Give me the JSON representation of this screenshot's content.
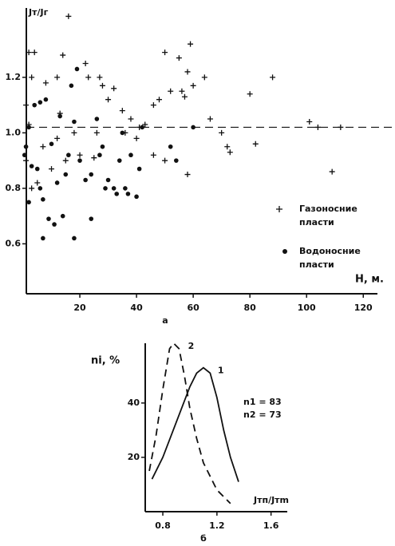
{
  "chart_data": [
    {
      "type": "scatter",
      "caption": "а",
      "ylabel": "Jт/Jг",
      "xlabel": "H, м.",
      "xlim": [
        0,
        125
      ],
      "ylim": [
        0.42,
        1.45
      ],
      "xticks": [
        20,
        40,
        60,
        80,
        100,
        120
      ],
      "yticks": [
        0.6,
        0.8,
        {
          "value": 1,
          "label": "1.0"
        },
        1.2
      ],
      "hline": 1.02,
      "series": [
        {
          "name": "Газоносние пласти",
          "marker": "plus",
          "color": "#111",
          "x": [
            2,
            4,
            3,
            8,
            12,
            13,
            16,
            14,
            22,
            23,
            27,
            28,
            32,
            30,
            35,
            38,
            41,
            43,
            46,
            48,
            50,
            52,
            55,
            56,
            57,
            58,
            59,
            60,
            64,
            66,
            70,
            72,
            73,
            80,
            82,
            88,
            101,
            104,
            112,
            109,
            58,
            50,
            46,
            25,
            20,
            15,
            10,
            5,
            3,
            7,
            12,
            18,
            26,
            36,
            40,
            1,
            2,
            1
          ],
          "values": [
            1.29,
            1.29,
            1.2,
            1.18,
            1.2,
            1.07,
            1.42,
            1.28,
            1.25,
            1.2,
            1.2,
            1.17,
            1.16,
            1.12,
            1.08,
            1.05,
            1.02,
            1.03,
            1.1,
            1.12,
            1.29,
            1.15,
            1.27,
            1.15,
            1.13,
            1.22,
            1.32,
            1.17,
            1.2,
            1.05,
            1.0,
            0.95,
            0.93,
            1.14,
            0.96,
            1.2,
            1.04,
            1.02,
            1.02,
            0.86,
            0.85,
            0.9,
            0.92,
            0.91,
            0.92,
            0.9,
            0.87,
            0.82,
            0.8,
            0.95,
            0.98,
            1.0,
            1.0,
            1.0,
            0.98,
            1.1,
            1.03,
            0.9
          ]
        },
        {
          "name": "Водоносние пласти",
          "marker": "dot",
          "color": "#111",
          "x": [
            1,
            0.5,
            2,
            4,
            6,
            8,
            3,
            5,
            6,
            7,
            2,
            9,
            11,
            7,
            18,
            14,
            19,
            17,
            18,
            20,
            22,
            24,
            24,
            26,
            28,
            30,
            32,
            33,
            34,
            35,
            36,
            38,
            40,
            41,
            42,
            52,
            54,
            60,
            12,
            15,
            16,
            10,
            13,
            27,
            29,
            37
          ],
          "values": [
            0.95,
            0.92,
            1.02,
            1.1,
            1.11,
            1.12,
            0.88,
            0.87,
            0.8,
            0.76,
            0.75,
            0.69,
            0.67,
            0.62,
            0.62,
            0.7,
            1.23,
            1.17,
            1.04,
            0.9,
            0.83,
            0.85,
            0.69,
            1.05,
            0.95,
            0.83,
            0.8,
            0.78,
            0.9,
            1.0,
            0.8,
            0.92,
            0.77,
            0.87,
            1.02,
            0.95,
            0.9,
            1.02,
            0.82,
            0.85,
            0.92,
            0.96,
            1.06,
            0.92,
            0.8,
            0.78
          ]
        }
      ]
    },
    {
      "type": "line",
      "caption": "б",
      "ylabel": "ni, %",
      "xlabel": "Jтп/Jтm",
      "xlim": [
        0.67,
        1.72
      ],
      "ylim": [
        0,
        62
      ],
      "xticks": [
        0.8,
        1.2,
        1.6
      ],
      "yticks": [
        20,
        40
      ],
      "annotations": [
        "n1 = 83",
        "n2 = 73"
      ],
      "series": [
        {
          "name": "1",
          "dash": false,
          "color": "#111",
          "x": [
            0.72,
            0.8,
            0.9,
            1.0,
            1.05,
            1.1,
            1.15,
            1.2,
            1.25,
            1.3,
            1.36
          ],
          "values": [
            12,
            20,
            33,
            46,
            51,
            53,
            51,
            42,
            30,
            20,
            11
          ]
        },
        {
          "name": "2",
          "dash": true,
          "color": "#111",
          "x": [
            0.7,
            0.75,
            0.8,
            0.85,
            0.88,
            0.92,
            0.96,
            1.0,
            1.05,
            1.1,
            1.2,
            1.3
          ],
          "values": [
            15,
            28,
            45,
            60,
            62,
            60,
            50,
            38,
            27,
            18,
            8,
            3
          ]
        }
      ]
    }
  ]
}
